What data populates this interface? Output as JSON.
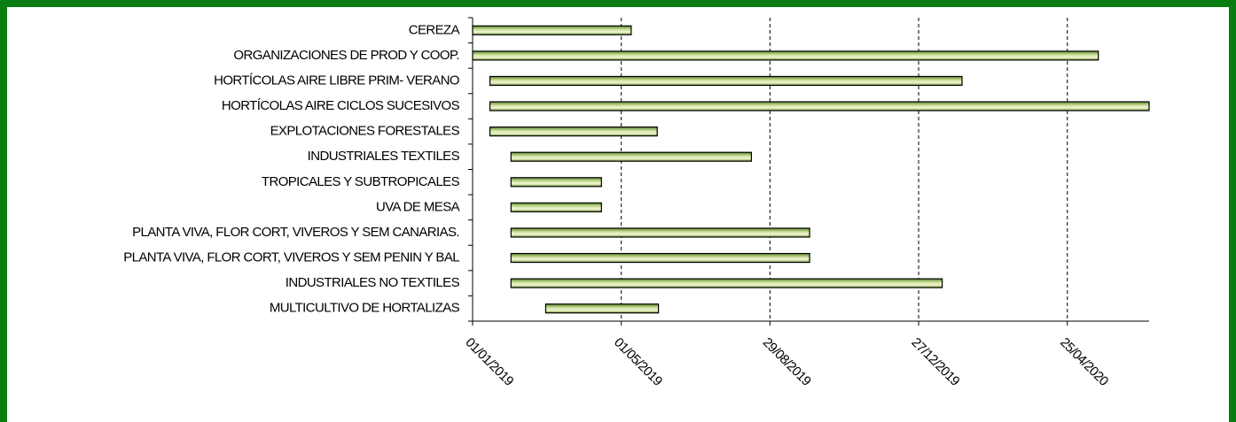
{
  "chart_data": {
    "type": "gantt",
    "categories": [
      "CEREZA",
      "ORGANIZACIONES DE PROD Y COOP.",
      "HORTÍCOLAS AIRE LIBRE PRIM- VERANO",
      "HORTÍCOLAS AIRE CICLOS SUCESIVOS",
      "EXPLOTACIONES FORESTALES",
      "INDUSTRIALES TEXTILES",
      "TROPICALES Y SUBTROPICALES",
      "UVA DE MESA",
      "PLANTA VIVA, FLOR CORT, VIVEROS Y SEM CANARIAS.",
      "PLANTA VIVA, FLOR CORT, VIVEROS Y SEM PENIN Y BAL",
      "INDUSTRIALES NO TEXTILES",
      "MULTICULTIVO DE HORTALIZAS"
    ],
    "start": [
      "2019-01-01",
      "2019-01-01",
      "2019-01-15",
      "2019-01-15",
      "2019-01-15",
      "2019-02-01",
      "2019-02-01",
      "2019-02-01",
      "2019-02-01",
      "2019-02-01",
      "2019-02-01",
      "2019-03-01"
    ],
    "end": [
      "2019-05-09",
      "2020-05-20",
      "2020-01-31",
      "2020-06-30",
      "2019-05-30",
      "2019-08-14",
      "2019-04-15",
      "2019-04-15",
      "2019-09-30",
      "2019-09-30",
      "2020-01-15",
      "2019-05-31"
    ],
    "color": "#d8e6a8",
    "xlim": [
      "2019-01-01",
      "2020-06-30"
    ],
    "xticks": [
      {
        "value": "2019-01-01",
        "label": "01/01/2019"
      },
      {
        "value": "2019-05-01",
        "label": "01/05/2019"
      },
      {
        "value": "2019-08-29",
        "label": "29/08/2019"
      },
      {
        "value": "2019-12-27",
        "label": "27/12/2019"
      },
      {
        "value": "2020-04-25",
        "label": "25/04/2020"
      }
    ],
    "grid": true
  }
}
